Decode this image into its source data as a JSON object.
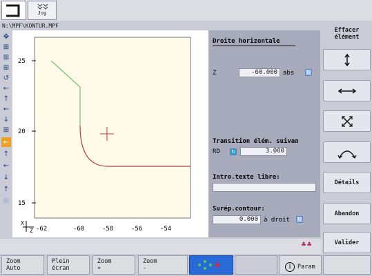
{
  "header": {
    "jog_label": "Jog",
    "program_path": "N:\\MPF\\KONTUR.MPF"
  },
  "plot": {
    "x_axis_label": "X",
    "z_axis_label": "Z",
    "x_ticks": [
      "-62",
      "-60",
      "-58",
      "-56",
      "-54"
    ],
    "y_ticks": [
      "25",
      "20",
      "15"
    ],
    "colors": {
      "background": "#fffbe8",
      "contour_prev": "#6cc66c",
      "contour_current": "#b33a4e"
    }
  },
  "edit_panel": {
    "title": "Droite horizontale",
    "z_label": "Z",
    "z_value": "-60.000",
    "z_mode": "abs",
    "transition_label": "Transition élém. suivan",
    "rd_label": "RD",
    "rd_value": "3.000",
    "free_text_label": "Intro.texte libre:",
    "free_text_value": "",
    "overmeasure_label": "Surép.contour:",
    "overmeasure_value": "0.000",
    "overmeasure_side": "à droit"
  },
  "vertical_softkeys": {
    "delete_element": "Effacer élément",
    "vertical_arrow": "vertical-arrow-icon",
    "horizontal_arrow": "horizontal-arrow-icon",
    "diagonal_arrow": "diagonal-arrow-icon",
    "arc": "arc-icon",
    "details": "Détails",
    "abort": "Abandon",
    "validate": "Valider"
  },
  "horizontal_softkeys": {
    "zoom_auto": "Zoom\nAuto",
    "full_screen": "Plein\nécran",
    "zoom_plus": "Zoom\n+",
    "zoom_minus": "Zoom\n-",
    "param": "Param"
  }
}
